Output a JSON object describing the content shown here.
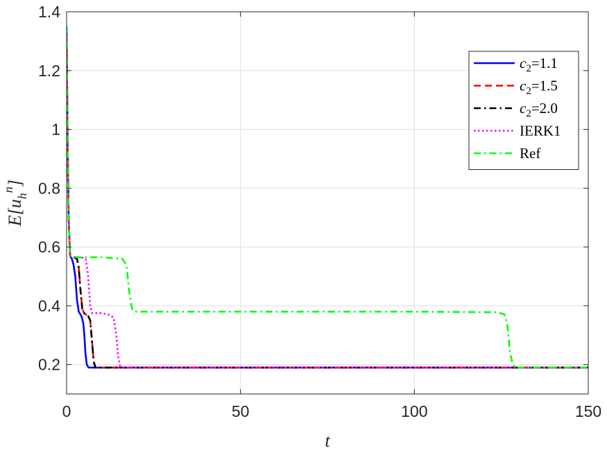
{
  "chart_data": {
    "type": "line",
    "xlabel": "t",
    "ylabel": "E[u_h^n]",
    "xlim": [
      0,
      150
    ],
    "ylim": [
      0.1,
      1.4
    ],
    "x_ticks": [
      0,
      50,
      100,
      150
    ],
    "y_ticks": [
      0.2,
      0.4,
      0.6,
      0.8,
      1,
      1.2,
      1.4
    ],
    "x_tick_labels": [
      "0",
      "50",
      "100",
      "150"
    ],
    "y_tick_labels": [
      "0.2",
      "0.4",
      "0.6",
      "0.8",
      "1",
      "1.2",
      "1.4"
    ],
    "grid": true,
    "legend_position": "top-right",
    "series": [
      {
        "name": "c2=1.1",
        "legend_main": "c",
        "legend_sub": "2",
        "legend_rest": "=1.1",
        "color": "#0000ff",
        "dash": "solid",
        "x": [
          0,
          0.3,
          0.6,
          1,
          1.5,
          2,
          2.5,
          3,
          3.5,
          4,
          4.4,
          4.8,
          5.1,
          5.4,
          5.8,
          6.3,
          7,
          150
        ],
        "y": [
          1.35,
          0.95,
          0.7,
          0.57,
          0.56,
          0.54,
          0.5,
          0.42,
          0.38,
          0.37,
          0.36,
          0.34,
          0.3,
          0.24,
          0.2,
          0.19,
          0.19,
          0.19
        ]
      },
      {
        "name": "c2=1.5",
        "legend_main": "c",
        "legend_sub": "2",
        "legend_rest": "=1.5",
        "color": "#ff0000",
        "dash": "dashed",
        "x": [
          0,
          0.3,
          0.6,
          1,
          2,
          3,
          3.5,
          4,
          4.5,
          5,
          5.6,
          6.2,
          6.8,
          7.3,
          7.8,
          8.3,
          150
        ],
        "y": [
          1.35,
          0.95,
          0.7,
          0.57,
          0.565,
          0.56,
          0.53,
          0.45,
          0.39,
          0.375,
          0.37,
          0.365,
          0.35,
          0.28,
          0.21,
          0.19,
          0.19
        ]
      },
      {
        "name": "c2=2.0",
        "legend_main": "c",
        "legend_sub": "2",
        "legend_rest": "=2.0",
        "color": "#000000",
        "dash": "dashdot",
        "x": [
          0,
          0.3,
          0.6,
          1,
          2,
          3,
          3.5,
          4,
          4.5,
          5,
          5.6,
          6.2,
          6.8,
          7.3,
          7.8,
          8.3,
          150
        ],
        "y": [
          1.35,
          0.95,
          0.7,
          0.57,
          0.565,
          0.56,
          0.53,
          0.45,
          0.39,
          0.375,
          0.37,
          0.365,
          0.35,
          0.28,
          0.21,
          0.19,
          0.19
        ]
      },
      {
        "name": "IERK1",
        "legend_main": "IERK1",
        "legend_sub": "",
        "legend_rest": "",
        "color": "#ff00ff",
        "dash": "dotted",
        "x": [
          0,
          0.3,
          0.6,
          1,
          2,
          4,
          5.5,
          6.2,
          6.8,
          7.3,
          8,
          10,
          12,
          13.5,
          14.3,
          14.8,
          15.4,
          16.2,
          150
        ],
        "y": [
          1.35,
          0.95,
          0.7,
          0.57,
          0.565,
          0.565,
          0.56,
          0.5,
          0.4,
          0.375,
          0.375,
          0.375,
          0.37,
          0.36,
          0.3,
          0.23,
          0.195,
          0.19,
          0.19
        ]
      },
      {
        "name": "Ref",
        "legend_main": "Ref",
        "legend_sub": "",
        "legend_rest": "",
        "color": "#00ff00",
        "dash": "dashdot",
        "x": [
          0,
          0.3,
          0.6,
          1,
          3,
          10,
          16,
          17.2,
          18,
          18.8,
          19.5,
          25,
          60,
          100,
          124,
          126,
          126.8,
          127.5,
          128.3,
          129,
          150
        ],
        "y": [
          1.35,
          0.95,
          0.7,
          0.57,
          0.565,
          0.565,
          0.56,
          0.54,
          0.45,
          0.39,
          0.38,
          0.38,
          0.38,
          0.38,
          0.378,
          0.37,
          0.33,
          0.24,
          0.2,
          0.19,
          0.19
        ]
      }
    ]
  }
}
